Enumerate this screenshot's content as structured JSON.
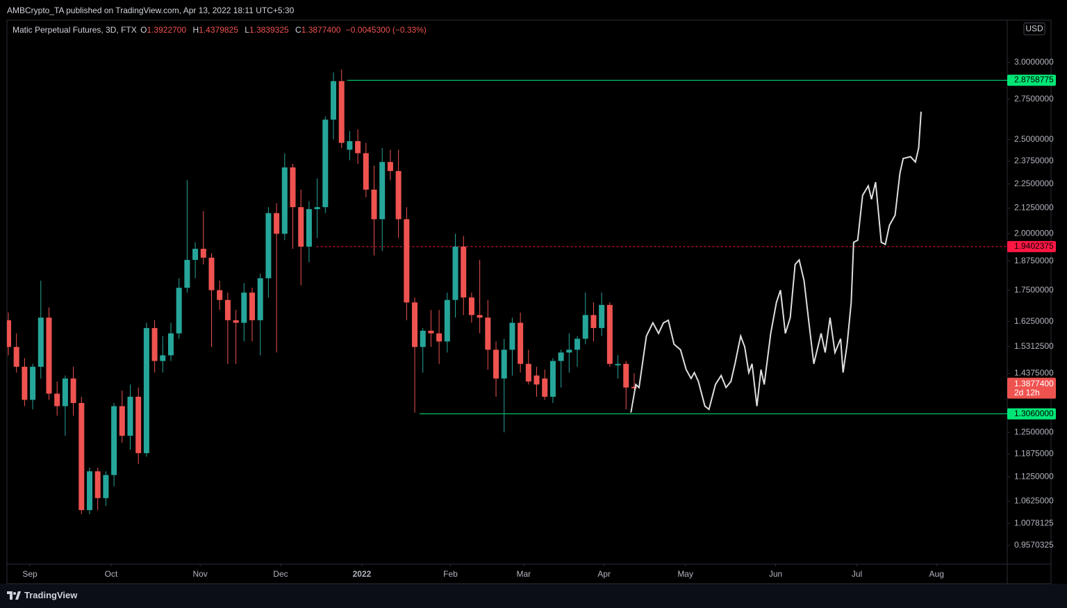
{
  "publisher": "AMBCrypto_TA published on TradingView.com, Apr 13, 2022 18:11 UTC+5:30",
  "brand": "TradingView",
  "chart_data": {
    "type": "candlestick",
    "title": "Matic Perpetual Futures, 3D, FTX",
    "ohlc_letters": [
      "O",
      "H",
      "L",
      "C"
    ],
    "last_labels": {
      "open": "1.3922700",
      "high": "1.4379825",
      "low": "1.3839325",
      "close": "1.3877400"
    },
    "change": "−0.0045300 (−0.33%)",
    "currency": "USD",
    "countdown": "2d 12h",
    "log_scale": true,
    "grid": false,
    "up_color": "#26a69a",
    "down_color": "#ef5350",
    "ylim": [
      0.915,
      3.31
    ],
    "yticks": [
      {
        "value": 3.0,
        "label": "3.0000000"
      },
      {
        "value": 2.75,
        "label": "2.7500000"
      },
      {
        "value": 2.5,
        "label": "2.5000000"
      },
      {
        "value": 2.375,
        "label": "2.3750000"
      },
      {
        "value": 2.25,
        "label": "2.2500000"
      },
      {
        "value": 2.125,
        "label": "2.1250000"
      },
      {
        "value": 2.0,
        "label": "2.0000000"
      },
      {
        "value": 1.875,
        "label": "1.8750000"
      },
      {
        "value": 1.75,
        "label": "1.7500000"
      },
      {
        "value": 1.625,
        "label": "1.6250000"
      },
      {
        "value": 1.53125,
        "label": "1.5312500"
      },
      {
        "value": 1.4375,
        "label": "1.4375000"
      },
      {
        "value": 1.25,
        "label": "1.2500000"
      },
      {
        "value": 1.1875,
        "label": "1.1875000"
      },
      {
        "value": 1.125,
        "label": "1.1250000"
      },
      {
        "value": 1.0625,
        "label": "1.0625000"
      },
      {
        "value": 1.0078125,
        "label": "1.0078125"
      },
      {
        "value": 0.9570325,
        "label": "0.9570325"
      }
    ],
    "xlim": [
      -0.17,
      122.9
    ],
    "xticks": [
      {
        "value": 2.65,
        "label": "Sep"
      },
      {
        "value": 12.65,
        "label": "Oct"
      },
      {
        "value": 23.6,
        "label": "Nov"
      },
      {
        "value": 33.5,
        "label": "Dec"
      },
      {
        "value": 43.5,
        "label": "2022"
      },
      {
        "value": 54.4,
        "label": "Feb"
      },
      {
        "value": 63.4,
        "label": "Mar"
      },
      {
        "value": 73.3,
        "label": "Apr"
      },
      {
        "value": 83.3,
        "label": "May"
      },
      {
        "value": 94.4,
        "label": "Jun"
      },
      {
        "value": 104.4,
        "label": "Jul"
      },
      {
        "value": 114.2,
        "label": "Aug"
      }
    ],
    "candles": {
      "open": [
        1.63,
        1.53,
        1.46,
        1.35,
        1.46,
        1.64,
        1.37,
        1.33,
        1.42,
        1.34,
        1.04,
        1.14,
        1.07,
        1.13,
        1.33,
        1.24,
        1.36,
        1.19,
        1.6,
        1.48,
        1.5,
        1.58,
        1.76,
        1.88,
        1.93,
        1.89,
        1.75,
        1.71,
        1.63,
        1.62,
        1.74,
        1.63,
        1.8,
        2.1,
        2.0,
        2.34,
        2.13,
        1.94,
        2.12,
        2.13,
        2.62,
        2.87,
        2.44,
        2.49,
        2.42,
        2.22,
        2.07,
        2.37,
        2.32,
        2.07,
        1.7,
        1.53,
        1.59,
        1.58,
        1.55,
        1.71,
        1.94,
        1.72,
        1.65,
        1.64,
        1.52,
        1.42,
        1.52,
        1.62,
        1.47,
        1.43,
        1.42,
        1.36,
        1.48,
        1.51,
        1.52,
        1.56,
        1.65,
        1.6,
        1.69,
        1.465,
        1.47,
        1.39227
      ],
      "high": [
        1.66,
        1.58,
        1.49,
        1.47,
        1.79,
        1.68,
        1.41,
        1.43,
        1.46,
        1.36,
        1.15,
        1.15,
        1.14,
        1.34,
        1.38,
        1.4,
        1.39,
        1.62,
        1.63,
        1.57,
        1.62,
        1.8,
        2.27,
        1.96,
        2.11,
        1.91,
        1.79,
        1.74,
        1.67,
        1.78,
        1.76,
        1.82,
        2.13,
        2.15,
        2.42,
        2.36,
        2.22,
        2.16,
        2.28,
        2.64,
        2.93,
        2.95,
        2.55,
        2.56,
        2.48,
        2.35,
        2.45,
        2.44,
        2.44,
        2.13,
        1.72,
        1.6,
        1.67,
        1.67,
        1.74,
        2.0,
        1.99,
        1.74,
        1.88,
        1.71,
        1.55,
        1.56,
        1.64,
        1.66,
        1.52,
        1.46,
        1.45,
        1.49,
        1.52,
        1.58,
        1.57,
        1.74,
        1.7,
        1.74,
        1.7,
        1.5,
        1.48,
        1.4379825
      ],
      "low": [
        1.5,
        1.44,
        1.33,
        1.32,
        1.42,
        1.35,
        1.3,
        1.24,
        1.3,
        1.03,
        1.03,
        1.04,
        1.05,
        1.1,
        1.22,
        1.2,
        1.16,
        1.18,
        1.44,
        1.44,
        1.48,
        1.56,
        1.74,
        1.8,
        1.86,
        1.53,
        1.67,
        1.47,
        1.47,
        1.55,
        1.55,
        1.5,
        1.72,
        1.51,
        1.97,
        1.93,
        1.77,
        1.87,
        1.98,
        2.1,
        2.5,
        2.45,
        2.38,
        2.36,
        2.18,
        1.9,
        1.92,
        2.27,
        1.98,
        1.63,
        1.31,
        1.44,
        1.53,
        1.47,
        1.51,
        1.64,
        1.65,
        1.62,
        1.58,
        1.45,
        1.36,
        1.25,
        1.43,
        1.44,
        1.4,
        1.36,
        1.35,
        1.34,
        1.39,
        1.44,
        1.46,
        1.54,
        1.55,
        1.57,
        1.46,
        1.42,
        1.32,
        1.3839325
      ],
      "close": [
        1.53,
        1.46,
        1.35,
        1.46,
        1.64,
        1.37,
        1.33,
        1.42,
        1.34,
        1.04,
        1.14,
        1.07,
        1.13,
        1.33,
        1.24,
        1.36,
        1.19,
        1.6,
        1.48,
        1.5,
        1.58,
        1.76,
        1.88,
        1.93,
        1.89,
        1.75,
        1.71,
        1.63,
        1.62,
        1.74,
        1.63,
        1.8,
        2.1,
        2.0,
        2.34,
        2.13,
        1.94,
        2.12,
        2.13,
        2.62,
        2.87,
        2.48,
        2.49,
        2.42,
        2.22,
        2.07,
        2.37,
        2.32,
        2.07,
        1.7,
        1.53,
        1.59,
        1.58,
        1.55,
        1.71,
        1.94,
        1.72,
        1.65,
        1.64,
        1.52,
        1.42,
        1.52,
        1.62,
        1.47,
        1.41,
        1.4,
        1.36,
        1.48,
        1.51,
        1.52,
        1.56,
        1.65,
        1.6,
        1.69,
        1.47,
        1.47,
        1.39,
        1.38774
      ]
    },
    "levels": [
      {
        "value": 2.8758775,
        "label": "2.8758775",
        "color": "#00e676",
        "start": 41.7,
        "style": "solid"
      },
      {
        "value": 1.9402375,
        "label": "1.9402375",
        "color": "#ff1744",
        "start": 37.9,
        "style": "dashed"
      },
      {
        "value": 1.306,
        "label": "1.3060000",
        "color": "#00e676",
        "start": 50.6,
        "style": "solid"
      }
    ],
    "projection": {
      "color": "#e0e0e0",
      "x": [
        76.6,
        77.2,
        77.6,
        78.5,
        79.3,
        80.0,
        80.6,
        81.2,
        81.9,
        82.7,
        83.4,
        84.0,
        84.4,
        84.9,
        85.7,
        86.2,
        87.0,
        87.7,
        88.3,
        88.9,
        89.4,
        90.1,
        90.6,
        91.1,
        91.5,
        92.1,
        92.6,
        93.0,
        93.8,
        94.5,
        95.0,
        95.6,
        96.2,
        96.8,
        97.3,
        97.9,
        98.5,
        99.1,
        100.0,
        100.5,
        101.1,
        101.7,
        102.4,
        102.7,
        103.2,
        103.7,
        104.0,
        104.5,
        105.1,
        105.8,
        106.2,
        106.7,
        107.4,
        107.9,
        108.4,
        109.1,
        109.7,
        110.1,
        111.0,
        111.6,
        112.0,
        112.3
      ],
      "values": [
        1.31,
        1.4,
        1.39,
        1.57,
        1.62,
        1.58,
        1.62,
        1.63,
        1.54,
        1.52,
        1.45,
        1.42,
        1.44,
        1.41,
        1.33,
        1.32,
        1.4,
        1.43,
        1.39,
        1.41,
        1.47,
        1.57,
        1.53,
        1.44,
        1.47,
        1.33,
        1.45,
        1.4,
        1.58,
        1.7,
        1.75,
        1.58,
        1.64,
        1.86,
        1.88,
        1.79,
        1.62,
        1.47,
        1.58,
        1.51,
        1.64,
        1.51,
        1.56,
        1.44,
        1.54,
        1.7,
        1.96,
        1.97,
        2.19,
        2.24,
        2.17,
        2.26,
        1.96,
        1.95,
        2.04,
        2.09,
        2.31,
        2.39,
        2.4,
        2.37,
        2.45,
        2.67
      ]
    }
  }
}
